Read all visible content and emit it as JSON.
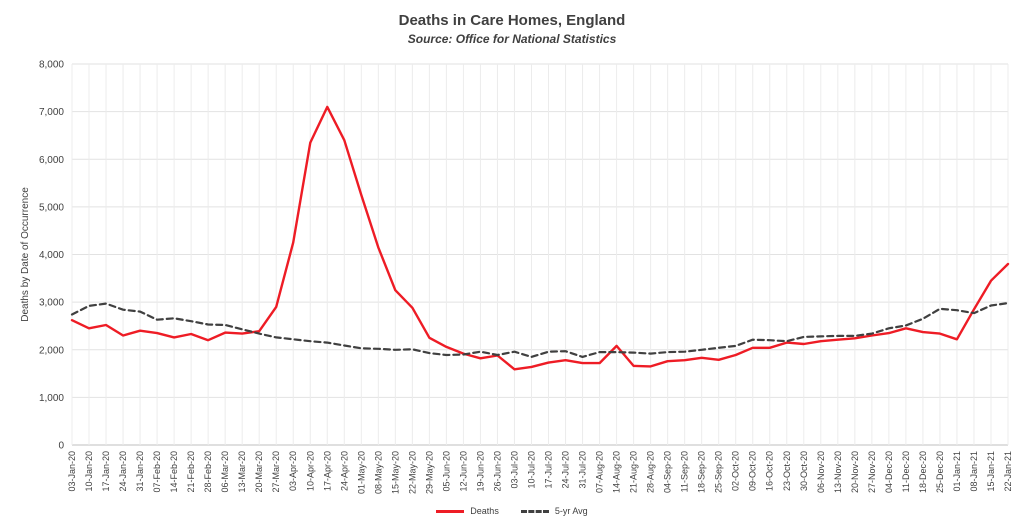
{
  "chart_data": {
    "type": "line",
    "title": "Deaths in Care Homes, England",
    "subtitle": "Source: Office for National Statistics",
    "ylabel": "Deaths by Date of Occurrence",
    "xlabel": "",
    "ylim": [
      0,
      8000
    ],
    "yticks": [
      "0",
      "1,000",
      "2,000",
      "3,000",
      "4,000",
      "5,000",
      "6,000",
      "7,000",
      "8,000"
    ],
    "grid": true,
    "legend_position": "bottom",
    "categories": [
      "03-Jan-20",
      "10-Jan-20",
      "17-Jan-20",
      "24-Jan-20",
      "31-Jan-20",
      "07-Feb-20",
      "14-Feb-20",
      "21-Feb-20",
      "28-Feb-20",
      "06-Mar-20",
      "13-Mar-20",
      "20-Mar-20",
      "27-Mar-20",
      "03-Apr-20",
      "10-Apr-20",
      "17-Apr-20",
      "24-Apr-20",
      "01-May-20",
      "08-May-20",
      "15-May-20",
      "22-May-20",
      "29-May-20",
      "05-Jun-20",
      "12-Jun-20",
      "19-Jun-20",
      "26-Jun-20",
      "03-Jul-20",
      "10-Jul-20",
      "17-Jul-20",
      "24-Jul-20",
      "31-Jul-20",
      "07-Aug-20",
      "14-Aug-20",
      "21-Aug-20",
      "28-Aug-20",
      "04-Sep-20",
      "11-Sep-20",
      "18-Sep-20",
      "25-Sep-20",
      "02-Oct-20",
      "09-Oct-20",
      "16-Oct-20",
      "23-Oct-20",
      "30-Oct-20",
      "06-Nov-20",
      "13-Nov-20",
      "20-Nov-20",
      "27-Nov-20",
      "04-Dec-20",
      "11-Dec-20",
      "18-Dec-20",
      "25-Dec-20",
      "01-Jan-21",
      "08-Jan-21",
      "15-Jan-21",
      "22-Jan-21"
    ],
    "series": [
      {
        "name": "Deaths",
        "color": "#ee1c25",
        "style": "solid",
        "values": [
          2620,
          2450,
          2520,
          2300,
          2400,
          2350,
          2260,
          2330,
          2200,
          2360,
          2340,
          2390,
          2900,
          4250,
          6350,
          7100,
          6400,
          5250,
          4150,
          3250,
          2880,
          2250,
          2060,
          1920,
          1820,
          1880,
          1590,
          1640,
          1730,
          1780,
          1720,
          1720,
          2080,
          1660,
          1650,
          1760,
          1780,
          1830,
          1790,
          1890,
          2040,
          2040,
          2150,
          2120,
          2180,
          2210,
          2240,
          2300,
          2350,
          2450,
          2370,
          2340,
          2220,
          2850,
          3450,
          3800
        ]
      },
      {
        "name": "5-yr Avg",
        "color": "#404040",
        "style": "dashed",
        "values": [
          2740,
          2920,
          2970,
          2840,
          2800,
          2630,
          2660,
          2600,
          2530,
          2520,
          2430,
          2340,
          2260,
          2220,
          2180,
          2150,
          2090,
          2030,
          2020,
          2000,
          2010,
          1930,
          1890,
          1900,
          1960,
          1890,
          1960,
          1850,
          1960,
          1970,
          1850,
          1950,
          1950,
          1940,
          1920,
          1950,
          1960,
          2000,
          2040,
          2080,
          2210,
          2200,
          2180,
          2270,
          2280,
          2290,
          2290,
          2340,
          2450,
          2510,
          2650,
          2860,
          2830,
          2770,
          2930,
          2980
        ]
      }
    ]
  }
}
